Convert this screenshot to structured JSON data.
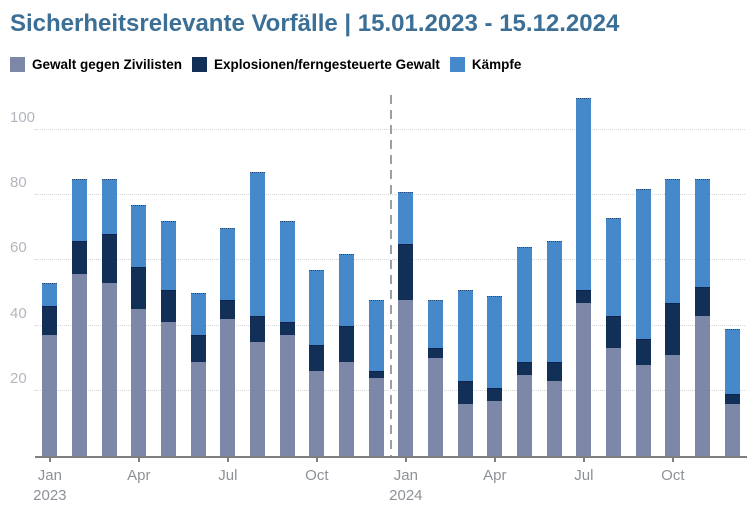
{
  "title": "Sicherheitsrelevante Vorfälle | 15.01.2023 - 15.12.2024",
  "legend": [
    {
      "label": "Gewalt gegen Zivilisten",
      "color": "#7d88a8"
    },
    {
      "label": "Explosionen/ferngesteuerte Gewalt",
      "color": "#122f58"
    },
    {
      "label": "Kämpfe",
      "color": "#4689ca"
    }
  ],
  "chart_data": {
    "type": "bar",
    "stacked": true,
    "title": "Sicherheitsrelevante Vorfälle | 15.01.2023 - 15.12.2024",
    "categories": [
      "Jan 2023",
      "Feb 2023",
      "Mar 2023",
      "Apr 2023",
      "May 2023",
      "Jun 2023",
      "Jul 2023",
      "Aug 2023",
      "Sep 2023",
      "Oct 2023",
      "Nov 2023",
      "Dec 2023",
      "Jan 2024",
      "Feb 2024",
      "Mar 2024",
      "Apr 2024",
      "May 2024",
      "Jun 2024",
      "Jul 2024",
      "Aug 2024",
      "Sep 2024",
      "Oct 2024",
      "Nov 2024",
      "Dec 2024"
    ],
    "series": [
      {
        "name": "Gewalt gegen Zivilisten",
        "color": "#7d88a8",
        "values": [
          37,
          56,
          53,
          45,
          41,
          29,
          42,
          35,
          37,
          26,
          29,
          24,
          48,
          30,
          16,
          17,
          25,
          23,
          47,
          33,
          28,
          31,
          43,
          16
        ]
      },
      {
        "name": "Explosionen/ferngesteuerte Gewalt",
        "color": "#122f58",
        "values": [
          9,
          10,
          15,
          13,
          10,
          8,
          6,
          8,
          4,
          8,
          11,
          2,
          17,
          3,
          7,
          4,
          4,
          6,
          4,
          10,
          8,
          16,
          9,
          3
        ]
      },
      {
        "name": "Kämpfe",
        "color": "#4689ca",
        "values": [
          7,
          19,
          17,
          19,
          21,
          13,
          22,
          44,
          31,
          23,
          22,
          22,
          16,
          15,
          28,
          28,
          35,
          37,
          59,
          30,
          46,
          38,
          33,
          20
        ]
      }
    ],
    "totals": [
      53,
      85,
      85,
      77,
      72,
      50,
      70,
      87,
      72,
      57,
      62,
      48,
      81,
      48,
      51,
      49,
      64,
      66,
      110,
      73,
      82,
      85,
      85,
      39
    ],
    "ylim": [
      0,
      112
    ],
    "yticks": [
      20,
      40,
      60,
      80,
      100
    ],
    "xticks": [
      {
        "index": 0,
        "line1": "Jan",
        "line2": "2023"
      },
      {
        "index": 3,
        "line1": "Apr",
        "line2": ""
      },
      {
        "index": 6,
        "line1": "Jul",
        "line2": ""
      },
      {
        "index": 9,
        "line1": "Oct",
        "line2": ""
      },
      {
        "index": 12,
        "line1": "Jan",
        "line2": "2024"
      },
      {
        "index": 15,
        "line1": "Apr",
        "line2": ""
      },
      {
        "index": 18,
        "line1": "Jul",
        "line2": ""
      },
      {
        "index": 21,
        "line1": "Oct",
        "line2": ""
      }
    ],
    "separator_after_index": 11,
    "grid": "horizontal-dotted",
    "legend_position": "top"
  },
  "colors": {
    "title": "#3c6f96",
    "axis_line": "#7f7f7f",
    "gridline": "#d6d6d6",
    "y_label": "#b2b6bd",
    "x_label": "#8d9198",
    "separator": "#9aa0a6",
    "background": "#ffffff"
  }
}
